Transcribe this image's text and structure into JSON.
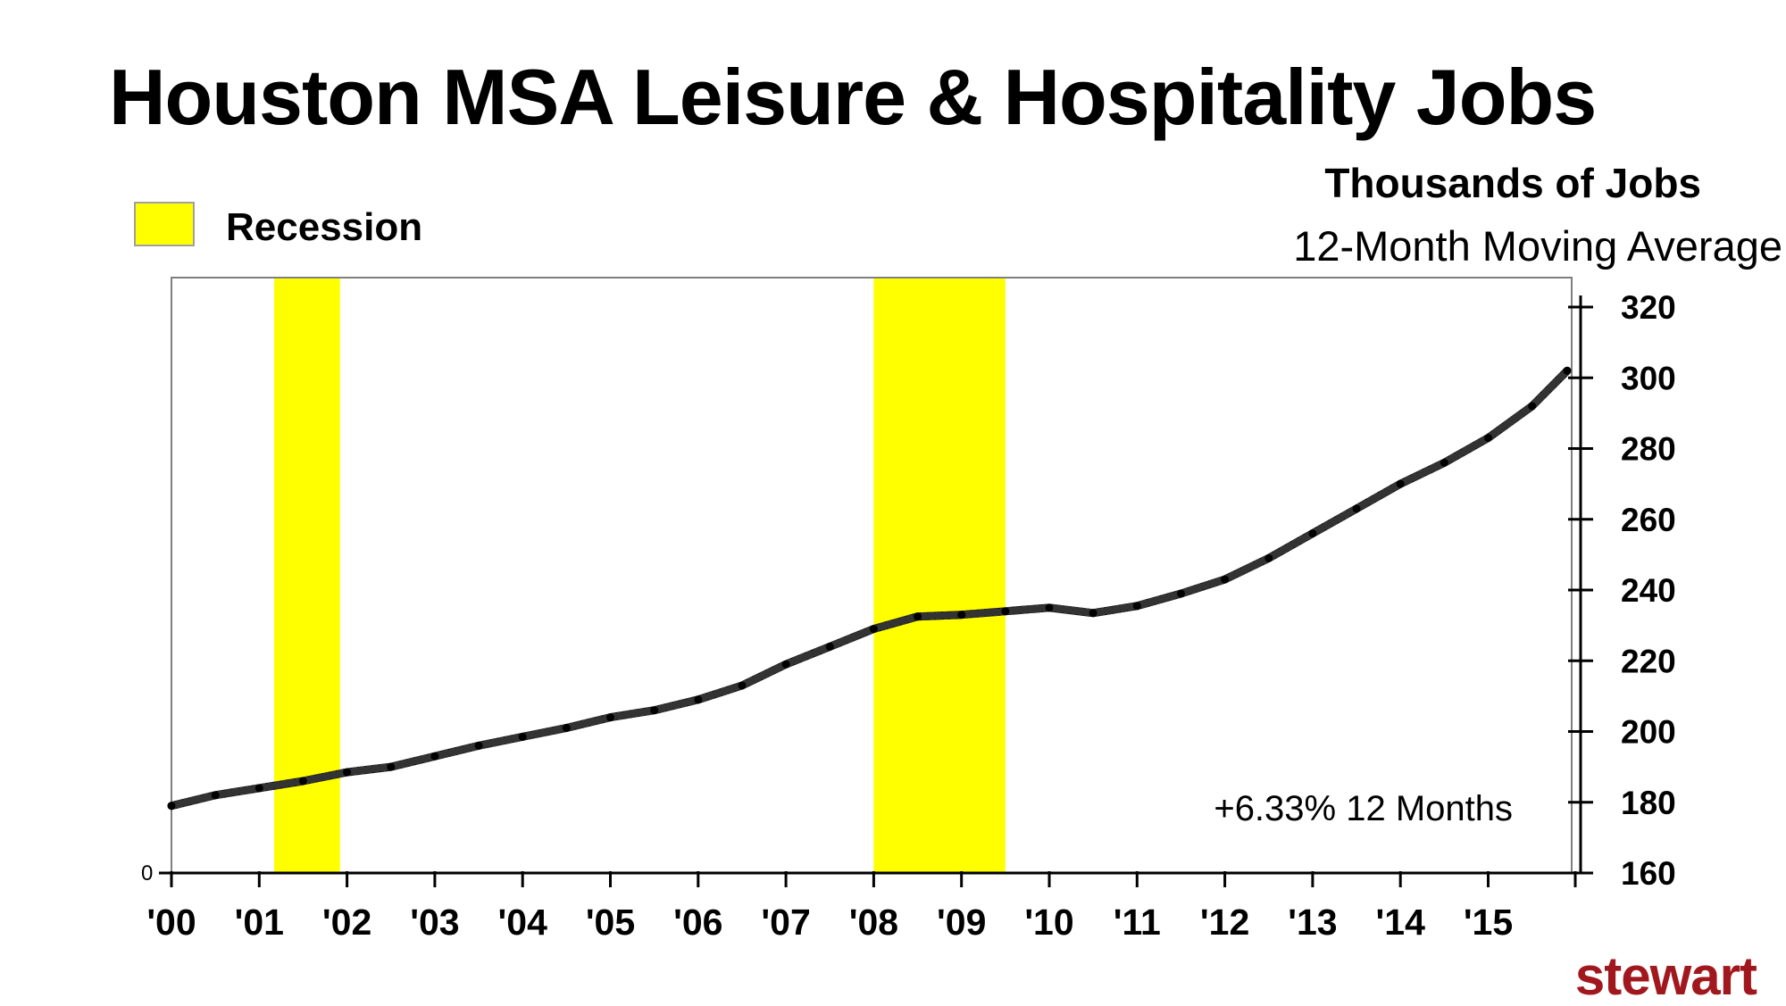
{
  "chart_data": {
    "type": "line",
    "title": "Houston MSA Leisure & Hospitality Jobs",
    "units": "Thousands of Jobs",
    "subtitle": "12-Month Moving Average",
    "legend": {
      "label": "Recession",
      "color": "#ffff00",
      "placement": "top-left"
    },
    "annotation": "+6.33% 12 Months",
    "origin_label": "0",
    "y_axis": {
      "side": "right",
      "ylim": [
        160,
        320
      ],
      "ticks": [
        160,
        180,
        200,
        220,
        240,
        260,
        280,
        300,
        320
      ]
    },
    "x_axis": {
      "xlim": [
        2000.0,
        2016.0
      ],
      "tick_labels": [
        "'00",
        "'01",
        "'02",
        "'03",
        "'04",
        "'05",
        "'06",
        "'07",
        "'08",
        "'09",
        "'10",
        "'11",
        "'12",
        "'13",
        "'14",
        "'15"
      ]
    },
    "recessions": [
      {
        "start": 2001.17,
        "end": 2001.92
      },
      {
        "start": 2008.0,
        "end": 2009.5
      }
    ],
    "series": [
      {
        "line_color": "#000000",
        "points": [
          [
            2000.0,
            179
          ],
          [
            2000.5,
            182
          ],
          [
            2001.0,
            184
          ],
          [
            2001.5,
            186
          ],
          [
            2002.0,
            188.5
          ],
          [
            2002.5,
            190
          ],
          [
            2003.0,
            193
          ],
          [
            2003.5,
            196
          ],
          [
            2004.0,
            198.5
          ],
          [
            2004.5,
            201
          ],
          [
            2005.0,
            204
          ],
          [
            2005.5,
            206
          ],
          [
            2006.0,
            209
          ],
          [
            2006.5,
            213
          ],
          [
            2007.0,
            219
          ],
          [
            2007.5,
            224
          ],
          [
            2008.0,
            229
          ],
          [
            2008.5,
            232.5
          ],
          [
            2009.0,
            233
          ],
          [
            2009.5,
            234
          ],
          [
            2010.0,
            235
          ],
          [
            2010.5,
            233.5
          ],
          [
            2011.0,
            235.5
          ],
          [
            2011.5,
            239
          ],
          [
            2012.0,
            243
          ],
          [
            2012.5,
            249
          ],
          [
            2013.0,
            256
          ],
          [
            2013.5,
            263
          ],
          [
            2014.0,
            270
          ],
          [
            2014.5,
            276
          ],
          [
            2015.0,
            283
          ],
          [
            2015.5,
            292
          ],
          [
            2015.9,
            302
          ]
        ]
      }
    ]
  },
  "branding": {
    "logo_text": "stewart"
  }
}
